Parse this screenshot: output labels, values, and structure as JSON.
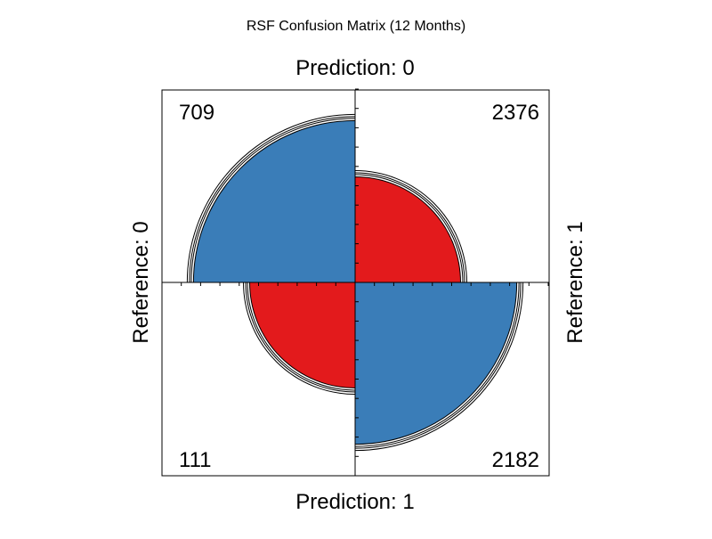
{
  "chart_data": {
    "type": "fourfold",
    "title": "RSF Confusion Matrix (12 Months)",
    "labels": {
      "top": "Prediction: 0",
      "bottom": "Prediction: 1",
      "left": "Reference: 0",
      "right": "Reference: 1"
    },
    "cells": [
      {
        "quadrant": "top-left",
        "prediction": "0",
        "reference": "0",
        "value": 709,
        "label": "709",
        "color": "#3a7db8"
      },
      {
        "quadrant": "top-right",
        "prediction": "0",
        "reference": "1",
        "value": 2376,
        "label": "2376",
        "color": "#e31a1c"
      },
      {
        "quadrant": "bottom-left",
        "prediction": "1",
        "reference": "0",
        "value": 111,
        "label": "111",
        "color": "#e31a1c"
      },
      {
        "quadrant": "bottom-right",
        "prediction": "1",
        "reference": "1",
        "value": 2182,
        "label": "2182",
        "color": "#3a7db8"
      }
    ],
    "odds_ratio_scaled_radii": [
      0.837,
      0.546,
      0.546,
      0.837
    ],
    "confidence_rings": true,
    "colors": {
      "positive": "#3a7db8",
      "negative": "#e31a1c",
      "outline": "#000000"
    }
  }
}
